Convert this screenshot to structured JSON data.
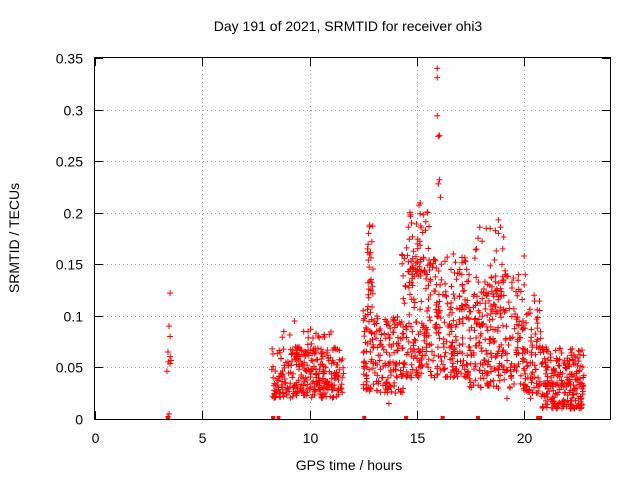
{
  "chart_data": {
    "type": "scatter",
    "title": "Day 191 of 2021, SRMTID for receiver ohi3",
    "xlabel": "GPS time / hours",
    "ylabel": "SRMTID / TECUs",
    "xlim": [
      0,
      24
    ],
    "ylim": [
      0,
      0.35
    ],
    "xticks": [
      0,
      5,
      10,
      15,
      20
    ],
    "yticks": [
      0,
      0.05,
      0.1,
      0.15,
      0.2,
      0.25,
      0.3,
      0.35
    ],
    "xtick_labels": [
      "0",
      "5",
      "10",
      "15",
      "20"
    ],
    "ytick_labels": [
      "0",
      "0.05",
      "0.1",
      "0.15",
      "0.2",
      "0.25",
      "0.3",
      "0.35"
    ],
    "grid": true,
    "marker": "+",
    "color": "#ff0000",
    "series": [
      {
        "name": "SRMTID",
        "clusters": [
          {
            "x_range": [
              3.35,
              3.55
            ],
            "y_range": [
              0.045,
              0.065
            ],
            "count": 5
          },
          {
            "x_range": [
              8.2,
              11.6
            ],
            "y_range": [
              0.02,
              0.07
            ],
            "count": 260
          },
          {
            "x_range": [
              8.6,
              11.4
            ],
            "y_range": [
              0.03,
              0.085
            ],
            "count": 60
          },
          {
            "x_range": [
              12.5,
              14.4
            ],
            "y_range": [
              0.025,
              0.1
            ],
            "count": 170
          },
          {
            "x_range": [
              12.7,
              13.0
            ],
            "y_range": [
              0.1,
              0.19
            ],
            "count": 25
          },
          {
            "x_range": [
              14.3,
              17.4
            ],
            "y_range": [
              0.04,
              0.16
            ],
            "count": 330
          },
          {
            "x_range": [
              14.5,
              15.6
            ],
            "y_range": [
              0.14,
              0.21
            ],
            "count": 35
          },
          {
            "x_range": [
              17.4,
              19.9
            ],
            "y_range": [
              0.03,
              0.14
            ],
            "count": 250
          },
          {
            "x_range": [
              17.7,
              19.2
            ],
            "y_range": [
              0.12,
              0.19
            ],
            "count": 25
          },
          {
            "x_range": [
              19.9,
              20.8
            ],
            "y_range": [
              0.025,
              0.12
            ],
            "count": 90
          },
          {
            "x_range": [
              20.8,
              22.8
            ],
            "y_range": [
              0.01,
              0.07
            ],
            "count": 230
          }
        ],
        "points": [
          [
            3.5,
            0.122
          ],
          [
            3.45,
            0.09
          ],
          [
            3.5,
            0.08
          ],
          [
            3.4,
            0.065
          ],
          [
            3.45,
            0.005
          ],
          [
            3.4,
            0.002
          ],
          [
            9.3,
            0.095
          ],
          [
            10.05,
            0.087
          ],
          [
            10.3,
            0.083
          ],
          [
            15.95,
            0.34
          ],
          [
            15.95,
            0.331
          ],
          [
            15.95,
            0.294
          ],
          [
            16.05,
            0.275
          ],
          [
            16.0,
            0.274
          ],
          [
            16.05,
            0.232
          ],
          [
            16.0,
            0.228
          ],
          [
            16.1,
            0.215
          ],
          [
            15.5,
            0.2
          ],
          [
            15.3,
            0.198
          ],
          [
            14.7,
            0.198
          ],
          [
            14.75,
            0.19
          ],
          [
            14.6,
            0.186
          ],
          [
            15.4,
            0.183
          ],
          [
            12.8,
            0.188
          ],
          [
            12.75,
            0.18
          ],
          [
            12.9,
            0.172
          ],
          [
            12.7,
            0.165
          ],
          [
            12.8,
            0.16
          ],
          [
            18.8,
            0.193
          ],
          [
            18.9,
            0.186
          ],
          [
            18.8,
            0.18
          ],
          [
            19.0,
            0.165
          ],
          [
            18.7,
            0.163
          ],
          [
            20.0,
            0.158
          ],
          [
            20.05,
            0.14
          ],
          [
            20.0,
            0.13
          ],
          [
            16.7,
            0.16
          ],
          [
            16.8,
            0.152
          ],
          [
            17.0,
            0.145
          ],
          [
            17.1,
            0.14
          ],
          [
            12.5,
            0.105
          ],
          [
            12.6,
            0.1
          ],
          [
            13.0,
            0.095
          ],
          [
            19.2,
            0.02
          ],
          [
            20.3,
            0.02
          ],
          [
            21.5,
            0.01
          ],
          [
            21.6,
            0.015
          ],
          [
            13.7,
            0.015
          ]
        ],
        "zero_points_x": [
          3.4,
          8.3,
          8.55,
          12.55,
          14.5,
          16.2,
          17.85,
          20.65,
          20.75
        ]
      }
    ]
  }
}
